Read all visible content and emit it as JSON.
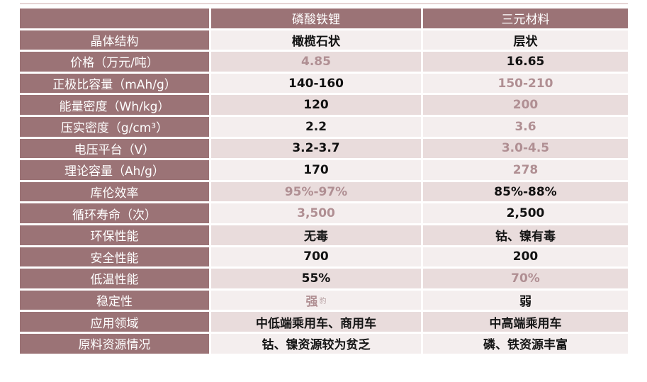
{
  "table": {
    "headers": [
      "",
      "磷酸铁锂",
      "三元材料"
    ],
    "rows": [
      {
        "label": "晶体结构",
        "a": "橄榄石状",
        "b": "层状"
      },
      {
        "label": "价格（万元/吨）",
        "a": "4.85",
        "b": "16.65"
      },
      {
        "label": "正极比容量（mAh/g）",
        "a": "140-160",
        "b": "150-210"
      },
      {
        "label": "能量密度（Wh/kg）",
        "a": "120",
        "b": "200"
      },
      {
        "label": "压实密度（g/cm³）",
        "a": "2.2",
        "b": "3.6"
      },
      {
        "label": "电压平台（V）",
        "a": "3.2-3.7",
        "b": "3.0-4.5"
      },
      {
        "label": "理论容量（Ah/g）",
        "a": "170",
        "b": "278"
      },
      {
        "label": "库伦效率",
        "a": "95%-97%",
        "b": "85%-88%"
      },
      {
        "label": "循环寿命（次）",
        "a": "3,500",
        "b": "2,500"
      },
      {
        "label": "环保性能",
        "a": "无毒",
        "b": "钴、镍有毒"
      },
      {
        "label": "安全性能",
        "a": "700",
        "b": "200"
      },
      {
        "label": "低温性能",
        "a": "55%",
        "b": "70%"
      },
      {
        "label": "稳定性",
        "a": "强",
        "a_mark": "豹",
        "b": "弱"
      },
      {
        "label": "应用领域",
        "a": "中低端乘用车、商用车",
        "b": "中高端乘用车"
      },
      {
        "label": "原料资源情况",
        "a": "钴、镍资源较为贫乏",
        "b": "磷、铁资源丰富"
      }
    ]
  }
}
